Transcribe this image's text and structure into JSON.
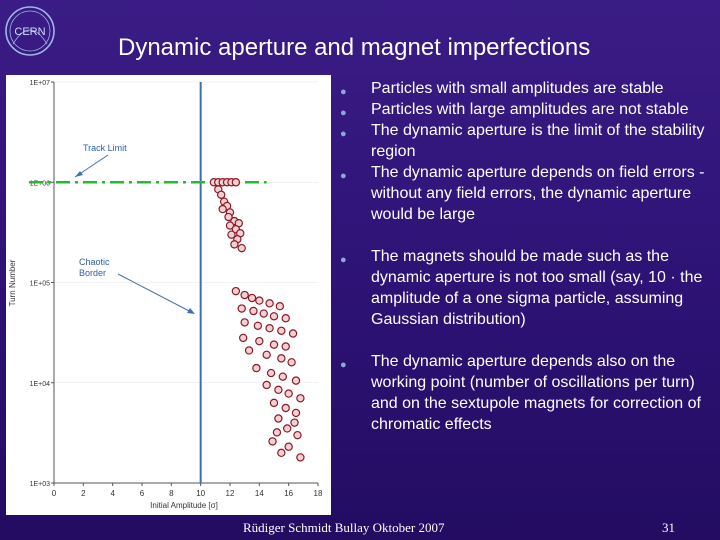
{
  "logo": {
    "text": "CERN"
  },
  "title": "Dynamic aperture and magnet imperfections",
  "chart_data": {
    "type": "scatter",
    "xlabel": "Initial Amplitude [σ]",
    "ylabel": "Turn Number",
    "xlim": [
      0,
      18
    ],
    "ylim": [
      1000,
      10000000
    ],
    "yscale": "log",
    "x_ticks": [
      "0",
      "2",
      "4",
      "6",
      "8",
      "10",
      "12",
      "14",
      "16",
      "18"
    ],
    "y_ticks": [
      "1E+07",
      "1E+06",
      "1E+05",
      "1E+04",
      "1E+03"
    ],
    "annotations": {
      "track_limit": "Track Limit",
      "chaotic_border": "Chaotic Border"
    },
    "track_limit_turns": 1000000,
    "chaotic_border_amplitude": 10,
    "points": [
      [
        10.9,
        1000000
      ],
      [
        11.2,
        1000000
      ],
      [
        11.5,
        1000000
      ],
      [
        11.8,
        1000000
      ],
      [
        12.1,
        1000000
      ],
      [
        12.4,
        1000000
      ],
      [
        11.2,
        850000
      ],
      [
        11.4,
        750000
      ],
      [
        11.6,
        640000
      ],
      [
        11.8,
        580000
      ],
      [
        11.5,
        540000
      ],
      [
        12.0,
        500000
      ],
      [
        11.9,
        450000
      ],
      [
        12.3,
        410000
      ],
      [
        12.6,
        390000
      ],
      [
        12.0,
        370000
      ],
      [
        12.4,
        340000
      ],
      [
        12.7,
        310000
      ],
      [
        12.1,
        300000
      ],
      [
        12.5,
        270000
      ],
      [
        12.3,
        240000
      ],
      [
        12.8,
        220000
      ],
      [
        12.4,
        82000
      ],
      [
        13.0,
        75000
      ],
      [
        13.5,
        70000
      ],
      [
        14.0,
        66000
      ],
      [
        14.7,
        62000
      ],
      [
        15.4,
        58000
      ],
      [
        12.8,
        55000
      ],
      [
        13.6,
        52000
      ],
      [
        14.3,
        49000
      ],
      [
        15.0,
        46000
      ],
      [
        15.8,
        44000
      ],
      [
        13.0,
        40000
      ],
      [
        13.9,
        37000
      ],
      [
        14.7,
        35000
      ],
      [
        15.5,
        33000
      ],
      [
        16.3,
        31000
      ],
      [
        12.9,
        28000
      ],
      [
        14.0,
        26000
      ],
      [
        15.0,
        24000
      ],
      [
        15.8,
        23000
      ],
      [
        13.3,
        21000
      ],
      [
        14.5,
        19000
      ],
      [
        15.5,
        17500
      ],
      [
        16.2,
        16000
      ],
      [
        13.8,
        14000
      ],
      [
        14.8,
        12500
      ],
      [
        15.6,
        11500
      ],
      [
        16.5,
        10500
      ],
      [
        14.5,
        9500
      ],
      [
        15.3,
        8500
      ],
      [
        16.0,
        7800
      ],
      [
        16.8,
        7000
      ],
      [
        15.0,
        6300
      ],
      [
        15.8,
        5600
      ],
      [
        16.5,
        5000
      ],
      [
        15.3,
        4400
      ],
      [
        16.4,
        4000
      ],
      [
        15.9,
        3500
      ],
      [
        15.2,
        3200
      ],
      [
        16.6,
        3000
      ],
      [
        14.9,
        2600
      ],
      [
        16.0,
        2300
      ],
      [
        15.5,
        2000
      ],
      [
        16.8,
        1800
      ]
    ]
  },
  "bullets": [
    "Particles with small amplitudes are stable",
    "Particles with large amplitudes are not stable",
    "The dynamic aperture is the limit of the stability region",
    "The dynamic aperture depends on field errors - without any field errors, the dynamic aperture would be large",
    "The magnets should be made such as the dynamic aperture is not too small (say, 10 · the amplitude of a one sigma particle, assuming Gaussian distribution)",
    "The dynamic aperture depends also on the working point (number of oscillations per turn) and on the sextupole magnets for correction of chromatic effects"
  ],
  "footer": {
    "author": "Rüdiger Schmidt Bullay Oktober 2007",
    "page": "31"
  },
  "colors": {
    "track_limit": "#22bb33",
    "chaotic_border": "#3f6fb0",
    "point_fill": "#f3d0d3",
    "point_stroke": "#8b1a26"
  }
}
